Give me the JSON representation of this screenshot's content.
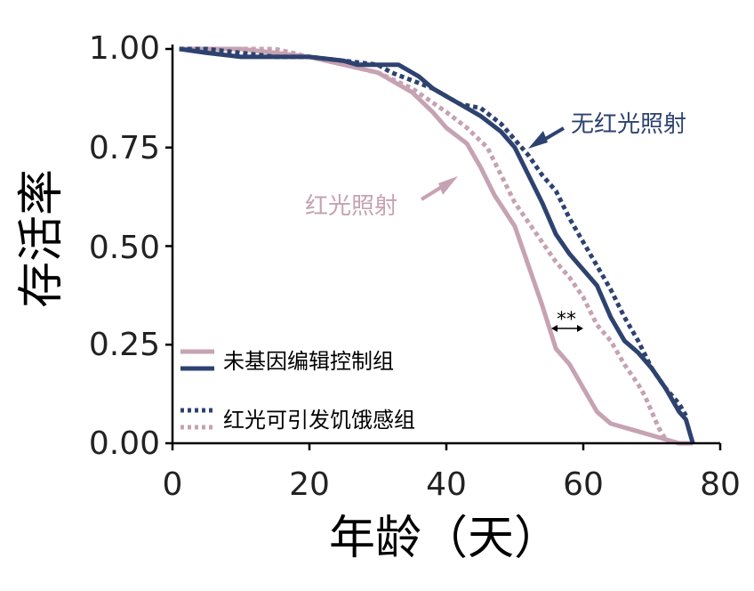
{
  "chart_data": {
    "type": "line",
    "xlabel": "年龄（天）",
    "ylabel": "存活率",
    "xlim": [
      0,
      80
    ],
    "ylim": [
      0,
      1
    ],
    "xticks": [
      "0",
      "20",
      "40",
      "60",
      "80"
    ],
    "yticks": [
      "0.00",
      "0.25",
      "0.50",
      "0.75",
      "1.00"
    ],
    "grid": false,
    "legend_position": "bottom-left",
    "legend": {
      "solid_label": "未基因编辑控制组",
      "dotted_label": "红光可引发饥饿感组"
    },
    "annotations": {
      "no_light": "无红光照射",
      "light": "红光照射",
      "significance": "**"
    },
    "colors": {
      "navy": "#2e4270",
      "pink": "#c6a2b2",
      "axis": "#000000",
      "text": "#222222"
    },
    "series": [
      {
        "key": "pink_solid",
        "color": "pink",
        "style": "solid",
        "x": [
          1,
          5,
          10,
          15,
          20,
          25,
          30,
          35,
          38,
          40,
          43,
          45,
          47,
          50,
          52,
          54,
          56,
          58,
          60,
          62,
          64,
          66,
          68,
          70,
          72,
          74,
          76
        ],
        "y": [
          1.0,
          1.0,
          1.0,
          0.99,
          0.98,
          0.96,
          0.94,
          0.89,
          0.84,
          0.8,
          0.76,
          0.7,
          0.63,
          0.55,
          0.45,
          0.35,
          0.24,
          0.2,
          0.14,
          0.08,
          0.05,
          0.04,
          0.03,
          0.02,
          0.01,
          0.0,
          0.0
        ]
      },
      {
        "key": "pink_dotted",
        "color": "pink",
        "style": "dotted",
        "x": [
          1,
          5,
          10,
          15,
          20,
          25,
          30,
          35,
          40,
          43,
          46,
          48,
          50,
          52,
          54,
          56,
          58,
          60,
          62,
          64,
          66,
          68,
          69,
          70,
          71,
          72
        ],
        "y": [
          1.0,
          1.0,
          1.0,
          1.0,
          0.98,
          0.96,
          0.94,
          0.9,
          0.84,
          0.8,
          0.75,
          0.68,
          0.61,
          0.56,
          0.51,
          0.46,
          0.42,
          0.37,
          0.3,
          0.26,
          0.2,
          0.15,
          0.12,
          0.08,
          0.04,
          0.01
        ]
      },
      {
        "key": "navy_solid",
        "color": "navy",
        "style": "solid",
        "x": [
          1,
          5,
          10,
          15,
          20,
          25,
          27,
          30,
          33,
          36,
          38,
          40,
          42,
          45,
          48,
          50,
          52,
          54,
          56,
          58,
          60,
          62,
          64,
          66,
          68,
          70,
          72,
          74,
          75,
          76
        ],
        "y": [
          1.0,
          0.99,
          0.98,
          0.98,
          0.98,
          0.97,
          0.96,
          0.96,
          0.96,
          0.93,
          0.9,
          0.88,
          0.86,
          0.83,
          0.79,
          0.75,
          0.68,
          0.61,
          0.53,
          0.48,
          0.44,
          0.4,
          0.32,
          0.26,
          0.23,
          0.19,
          0.14,
          0.08,
          0.06,
          0.0
        ]
      },
      {
        "key": "navy_dotted",
        "color": "navy",
        "style": "dotted",
        "x": [
          1,
          5,
          10,
          15,
          20,
          25,
          30,
          32,
          35,
          38,
          40,
          42,
          45,
          48,
          50,
          52,
          54,
          56,
          58,
          60,
          62,
          64,
          66,
          68,
          70,
          72,
          74,
          75
        ],
        "y": [
          1.0,
          1.0,
          0.99,
          0.98,
          0.98,
          0.97,
          0.96,
          0.94,
          0.92,
          0.9,
          0.88,
          0.86,
          0.85,
          0.81,
          0.77,
          0.73,
          0.68,
          0.64,
          0.57,
          0.51,
          0.45,
          0.39,
          0.32,
          0.26,
          0.19,
          0.14,
          0.1,
          0.07
        ]
      }
    ]
  }
}
